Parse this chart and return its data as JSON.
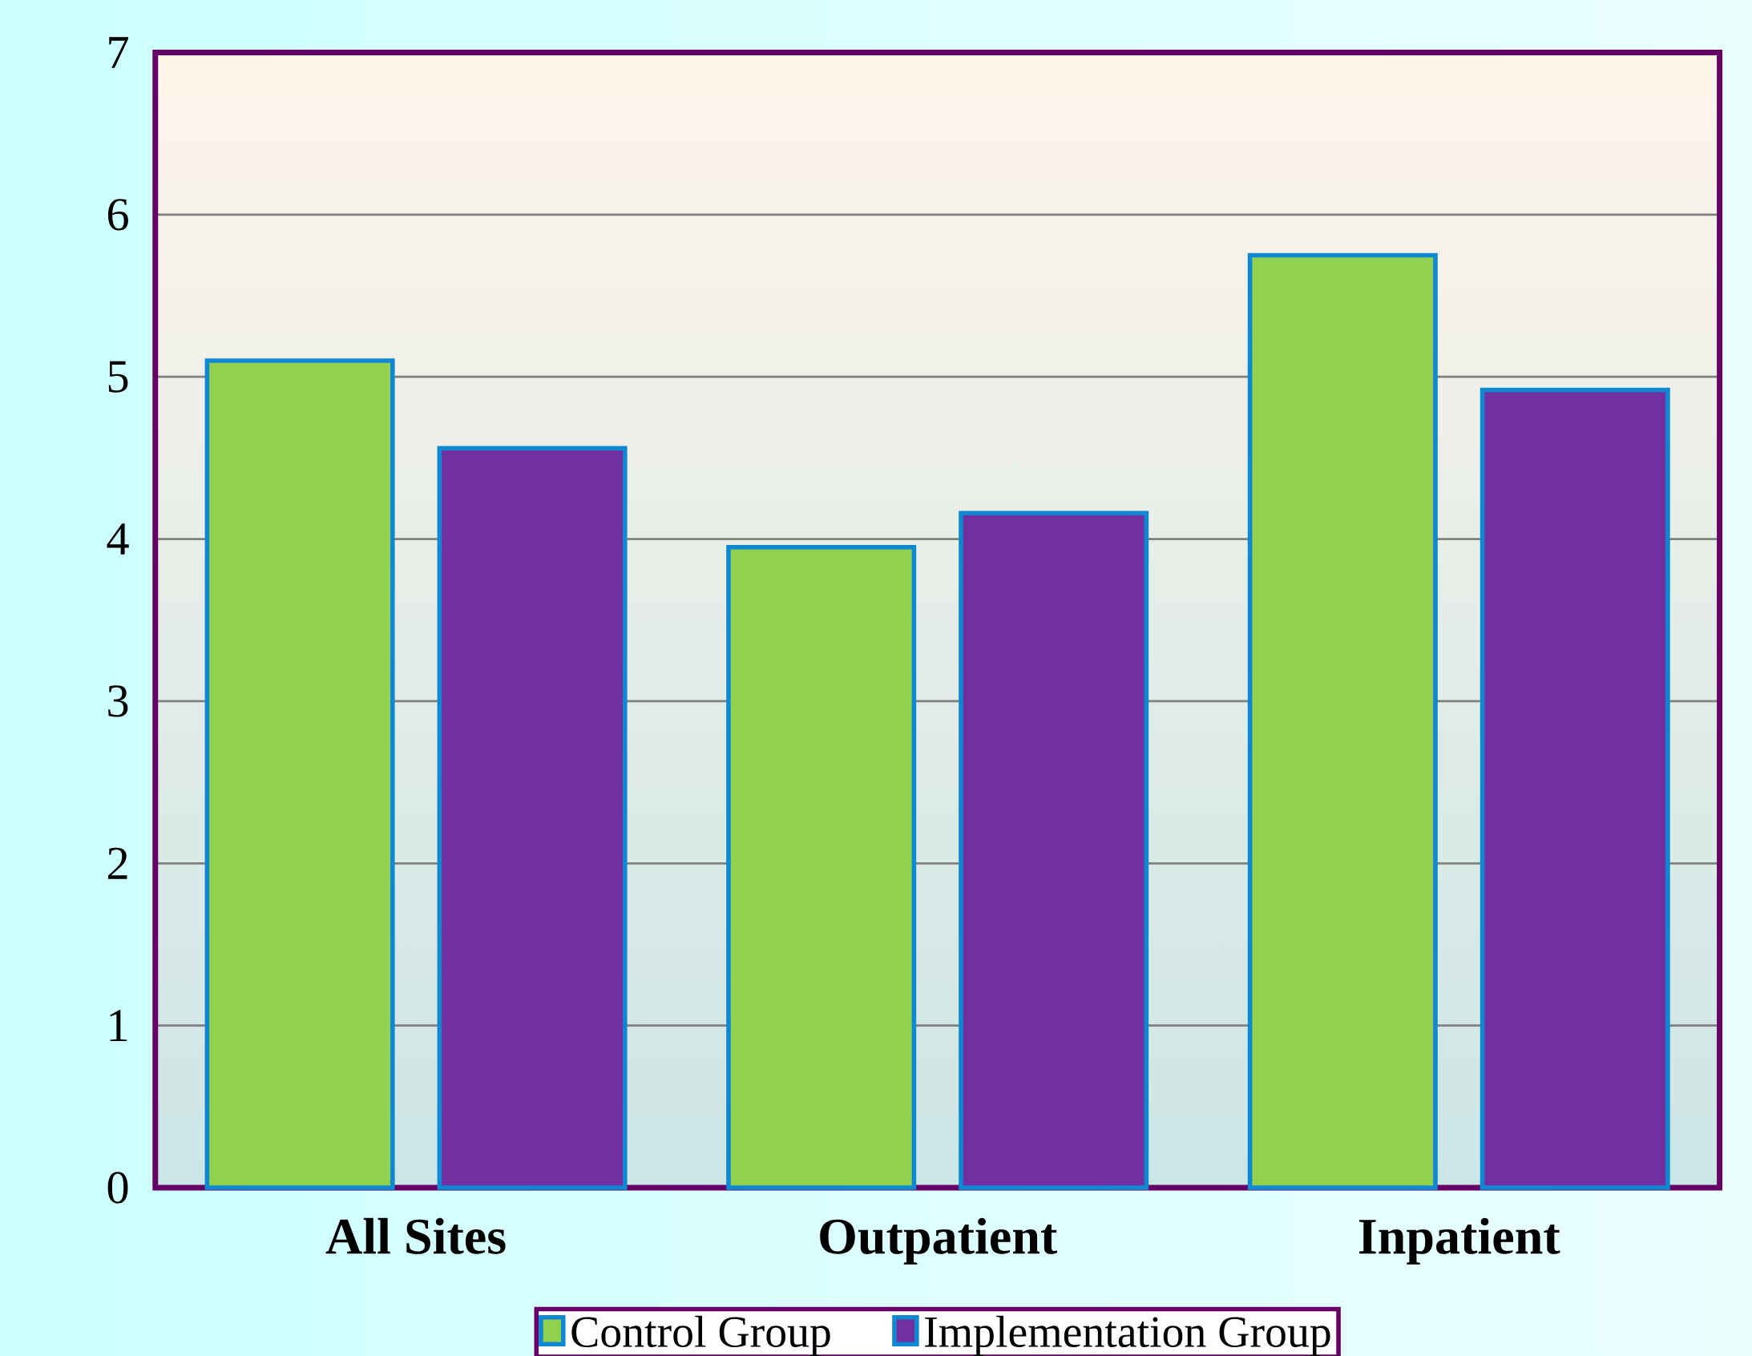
{
  "chart_data": {
    "type": "bar",
    "categories": [
      "All Sites",
      "Outpatient",
      "Inpatient"
    ],
    "series": [
      {
        "name": "Control Group",
        "color": "#92d050",
        "values": [
          5.1,
          3.95,
          5.75
        ]
      },
      {
        "name": "Implementation Group",
        "color": "#7030a0",
        "values": [
          4.56,
          4.16,
          4.92
        ]
      }
    ],
    "ylim": [
      0,
      7
    ],
    "yticks": [
      0,
      1,
      2,
      3,
      4,
      5,
      6,
      7
    ],
    "grid": "y",
    "legend": "bottom"
  }
}
